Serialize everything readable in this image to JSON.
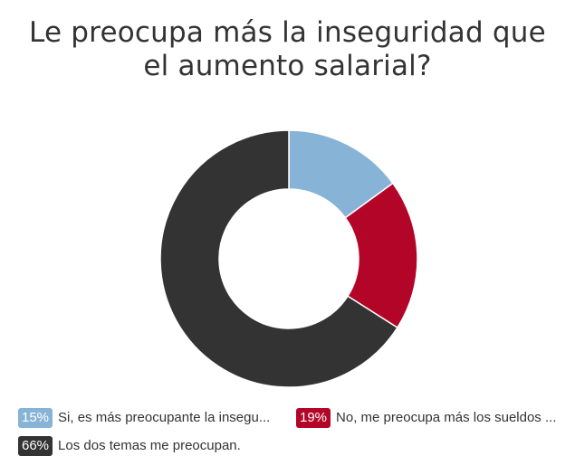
{
  "chart_data": {
    "type": "pie",
    "title_lines": [
      "Le preocupa más la inseguridad que",
      "el aumento salarial?"
    ],
    "categories": [
      "Si, es más preocupante la insegu...",
      "No, me preocupa más los sueldos ...",
      "Los dos temas me preocupan."
    ],
    "values": [
      15,
      19,
      66
    ],
    "value_labels": [
      "15%",
      "19%",
      "66%"
    ],
    "colors": [
      "#87B4D6",
      "#B30527",
      "#333333"
    ],
    "donut": true,
    "legend_placement": "bottom"
  }
}
